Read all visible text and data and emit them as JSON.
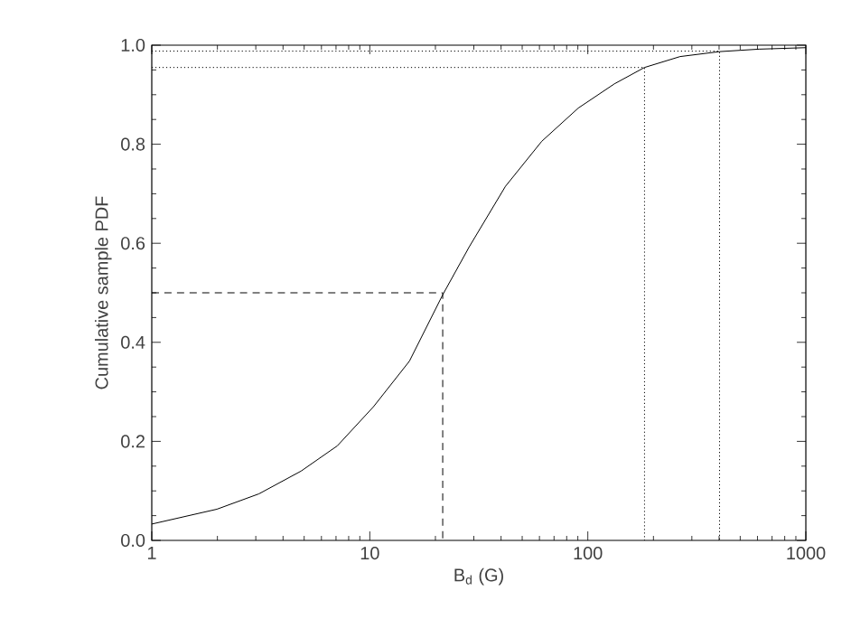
{
  "chart_data": {
    "type": "line",
    "xlabel": "B$_{d}$ (G)",
    "ylabel": "Cumulative sample PDF",
    "log": "x",
    "xlim": [
      1,
      1000
    ],
    "ylim": [
      0,
      1.0
    ],
    "xticks": [
      1,
      10,
      100,
      1000
    ],
    "yticks": [
      {
        "value": 0,
        "label": "0.0"
      },
      {
        "value": 0.2,
        "label": "0.2"
      },
      {
        "value": 0.4,
        "label": "0.4"
      },
      {
        "value": 0.6,
        "label": "0.6"
      },
      {
        "value": 0.8,
        "label": "0.8"
      },
      {
        "value": 1.0,
        "label": "1.0"
      }
    ],
    "marker": "none",
    "series": [
      {
        "color": "#000000",
        "line_style": "solid",
        "x": [
          1,
          1.99,
          3.1,
          4.84,
          7.1,
          10.4,
          15.2,
          21.6,
          28.6,
          41.9,
          61.5,
          90.4,
          132.5,
          182,
          265,
          402,
          610,
          1000
        ],
        "values": [
          0.033,
          0.063,
          0.094,
          0.14,
          0.191,
          0.27,
          0.362,
          0.496,
          0.593,
          0.715,
          0.806,
          0.873,
          0.922,
          0.955,
          0.977,
          0.987,
          0.992,
          0.995
        ]
      },
      {
        "color": "#000000",
        "line_style": "dashed",
        "x": [
          1,
          21.6,
          21.6
        ],
        "values": [
          0.5,
          0.5,
          0
        ]
      },
      {
        "color": "#000000",
        "line_style": "dotted",
        "x": [
          1,
          182,
          182
        ],
        "values": [
          0.955,
          0.955,
          0
        ]
      },
      {
        "color": "#000000",
        "line_style": "dotted",
        "x": [
          1,
          402,
          402
        ],
        "values": [
          0.988,
          0.988,
          0
        ]
      }
    ]
  }
}
